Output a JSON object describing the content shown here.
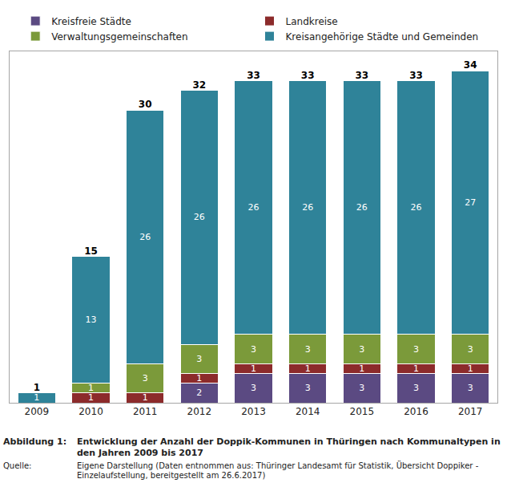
{
  "chart_data": {
    "type": "bar",
    "stacked": true,
    "data_labels": true,
    "legend": "top",
    "tick_labels": "x",
    "categories": [
      "2009",
      "2010",
      "2011",
      "2012",
      "2013",
      "2014",
      "2015",
      "2016",
      "2017"
    ],
    "series": [
      {
        "name": "Kreisfreie Städte",
        "color": "#5b4a82",
        "values": [
          null,
          null,
          null,
          2,
          3,
          3,
          3,
          3,
          3
        ]
      },
      {
        "name": "Landkreise",
        "color": "#8c2b2b",
        "values": [
          null,
          1,
          1,
          1,
          1,
          1,
          1,
          1,
          1
        ]
      },
      {
        "name": "Verwaltungsgemeinschaften",
        "color": "#7b9a3a",
        "values": [
          null,
          1,
          3,
          3,
          3,
          3,
          3,
          3,
          3
        ]
      },
      {
        "name": "Kreisangehörige Städte und Gemeinden",
        "color": "#2f8399",
        "values": [
          1,
          13,
          26,
          26,
          26,
          26,
          26,
          26,
          27
        ]
      }
    ],
    "totals": [
      1,
      15,
      30,
      32,
      33,
      33,
      33,
      33,
      34
    ],
    "ylim": [
      0,
      36
    ],
    "caption": {
      "figure_label": "Abbildung 1:",
      "title": "Entwicklung der Anzahl der Doppik-Kommunen in Thüringen nach Kommunaltypen in den Jahren 2009 bis 2017",
      "source_label": "Quelle:",
      "source": "Eigene Darstellung (Daten entnommen aus: Thüringer Landesamt für Statistik, Übersicht Doppiker - Einzelaufstellung, bereitgestellt am 26.6.2017)"
    }
  }
}
